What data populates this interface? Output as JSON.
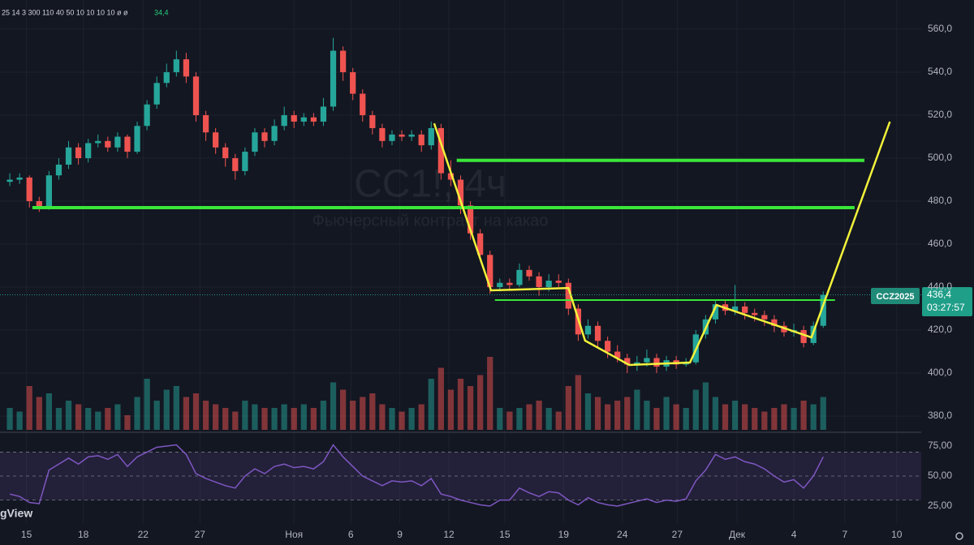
{
  "chart_data": {
    "type": "candlestick",
    "title": "CC1!, 4ч",
    "subtitle": "Фьючерсный контракт на какао",
    "brand": "gView",
    "indicator_text": "25 14 3 300 110 40 50 10 10 10 10 ø ø",
    "indicator_value": "34,4",
    "symbol_tag": "CCZ2025",
    "last_price_label": "436,4",
    "countdown": "03:27:57",
    "up_color": "#26a69a",
    "down_color": "#ef5350",
    "grid": true,
    "x": [
      0,
      1,
      2,
      3,
      4,
      5,
      6,
      7,
      8,
      9,
      10,
      11,
      12,
      13,
      14,
      15,
      16,
      17,
      18,
      19,
      20,
      21,
      22,
      23,
      24,
      25,
      26,
      27,
      28,
      29,
      30,
      31,
      32,
      33,
      34,
      35,
      36,
      37,
      38,
      39,
      40,
      41,
      42,
      43,
      44,
      45,
      46,
      47,
      48,
      49,
      50,
      51,
      52,
      53,
      54,
      55,
      56,
      57,
      58,
      59,
      60,
      61,
      62,
      63,
      64,
      65,
      66,
      67,
      68,
      69,
      70,
      71,
      72,
      73,
      74,
      75,
      76,
      77,
      78,
      79,
      80,
      81,
      82,
      83
    ],
    "open": [
      489,
      490,
      491,
      480,
      477,
      492,
      497,
      505,
      500,
      507,
      508,
      505,
      510,
      503,
      515,
      525,
      535,
      540,
      546,
      538,
      520,
      512,
      505,
      500,
      494,
      503,
      512,
      508,
      515,
      520,
      517,
      519,
      517,
      524,
      550,
      540,
      530,
      520,
      514,
      508,
      511,
      510,
      511,
      506,
      514,
      493,
      490,
      478,
      465,
      455,
      440,
      442,
      441,
      448,
      445,
      440,
      443,
      442,
      430,
      418,
      422,
      415,
      410,
      407,
      404,
      405,
      407,
      403,
      406,
      404,
      405,
      418,
      425,
      432,
      429,
      431,
      428,
      427,
      425,
      422,
      419,
      420,
      414,
      422
    ],
    "high": [
      493,
      493,
      492,
      482,
      494,
      500,
      508,
      507,
      509,
      511,
      510,
      512,
      511,
      517,
      527,
      538,
      544,
      550,
      549,
      540,
      522,
      514,
      507,
      502,
      505,
      514,
      514,
      518,
      524,
      522,
      521,
      521,
      528,
      556,
      552,
      542,
      532,
      522,
      516,
      513,
      513,
      513,
      513,
      517,
      516,
      499,
      492,
      480,
      467,
      457,
      444,
      444,
      451,
      450,
      447,
      446,
      446,
      444,
      432,
      425,
      424,
      417,
      413,
      409,
      408,
      411,
      409,
      408,
      408,
      407,
      420,
      427,
      434,
      434,
      441,
      433,
      430,
      429,
      427,
      424,
      423,
      422,
      424,
      438
    ],
    "low": [
      487,
      488,
      477,
      475,
      476,
      490,
      495,
      497,
      498,
      505,
      503,
      503,
      500,
      502,
      513,
      523,
      533,
      538,
      535,
      517,
      508,
      502,
      496,
      490,
      492,
      501,
      505,
      506,
      513,
      514,
      515,
      515,
      515,
      522,
      536,
      527,
      517,
      511,
      505,
      506,
      508,
      508,
      503,
      504,
      490,
      487,
      474,
      462,
      452,
      437,
      438,
      439,
      440,
      443,
      436,
      438,
      440,
      427,
      415,
      416,
      412,
      407,
      405,
      400,
      401,
      403,
      400,
      401,
      402,
      403,
      404,
      416,
      423,
      427,
      427,
      425,
      424,
      422,
      419,
      417,
      417,
      412,
      413,
      421
    ],
    "close": [
      490,
      491,
      480,
      477,
      492,
      497,
      505,
      500,
      507,
      508,
      505,
      510,
      503,
      515,
      525,
      535,
      540,
      546,
      538,
      520,
      512,
      505,
      500,
      494,
      503,
      512,
      508,
      515,
      520,
      517,
      519,
      517,
      524,
      550,
      540,
      530,
      520,
      514,
      508,
      511,
      510,
      511,
      506,
      514,
      493,
      490,
      478,
      465,
      455,
      440,
      442,
      441,
      448,
      445,
      440,
      443,
      442,
      430,
      418,
      422,
      415,
      410,
      407,
      404,
      405,
      407,
      403,
      406,
      404,
      405,
      418,
      425,
      432,
      429,
      431,
      428,
      427,
      425,
      422,
      419,
      420,
      414,
      422,
      436.4
    ],
    "volume": [
      30,
      25,
      60,
      45,
      50,
      30,
      40,
      35,
      30,
      25,
      30,
      35,
      20,
      45,
      70,
      40,
      55,
      60,
      45,
      50,
      40,
      35,
      30,
      25,
      40,
      35,
      30,
      30,
      35,
      30,
      35,
      30,
      40,
      65,
      55,
      40,
      45,
      50,
      35,
      30,
      25,
      30,
      35,
      70,
      85,
      55,
      70,
      60,
      75,
      100,
      30,
      25,
      30,
      35,
      40,
      30,
      25,
      60,
      75,
      50,
      45,
      35,
      40,
      45,
      55,
      40,
      30,
      45,
      35,
      30,
      55,
      65,
      45,
      35,
      40,
      35,
      30,
      25,
      30,
      35,
      30,
      40,
      35,
      45
    ],
    "rsi": [
      35,
      33,
      28,
      27,
      55,
      60,
      65,
      60,
      66,
      67,
      64,
      68,
      58,
      66,
      70,
      74,
      75,
      76,
      68,
      52,
      48,
      45,
      42,
      40,
      50,
      56,
      52,
      58,
      60,
      57,
      58,
      56,
      62,
      76,
      66,
      58,
      50,
      46,
      42,
      46,
      45,
      46,
      42,
      48,
      35,
      33,
      30,
      28,
      26,
      25,
      30,
      30,
      40,
      36,
      33,
      37,
      36,
      30,
      26,
      32,
      28,
      26,
      25,
      27,
      29,
      31,
      28,
      30,
      29,
      31,
      46,
      55,
      68,
      64,
      66,
      62,
      60,
      56,
      50,
      45,
      47,
      40,
      50,
      66
    ],
    "rsi_color": "#7e57c2",
    "rsi_levels": [
      70,
      50,
      30
    ],
    "xlim": [
      -1,
      93
    ],
    "xticks": [
      {
        "value": 1.7,
        "label": "15"
      },
      {
        "value": 7.5,
        "label": "18"
      },
      {
        "value": 13.6,
        "label": "22"
      },
      {
        "value": 19.4,
        "label": "27"
      },
      {
        "value": 29.0,
        "label": "Ноя"
      },
      {
        "value": 34.8,
        "label": "6"
      },
      {
        "value": 39.8,
        "label": "9"
      },
      {
        "value": 44.8,
        "label": "12"
      },
      {
        "value": 50.5,
        "label": "15"
      },
      {
        "value": 56.5,
        "label": "19"
      },
      {
        "value": 62.5,
        "label": "24"
      },
      {
        "value": 68.1,
        "label": "27"
      },
      {
        "value": 74.2,
        "label": "Дек"
      },
      {
        "value": 80.0,
        "label": "4"
      },
      {
        "value": 85.2,
        "label": "7"
      },
      {
        "value": 90.5,
        "label": "10"
      }
    ],
    "ylim": [
      373.6,
      573.6
    ],
    "yticks": [
      {
        "value": 560,
        "label": "560,0"
      },
      {
        "value": 540,
        "label": "540,0"
      },
      {
        "value": 520,
        "label": "520,0"
      },
      {
        "value": 500,
        "label": "500,0"
      },
      {
        "value": 480,
        "label": "480,0"
      },
      {
        "value": 460,
        "label": "460,0"
      },
      {
        "value": 440,
        "label": "440,0"
      },
      {
        "value": 420,
        "label": "420,0"
      },
      {
        "value": 400,
        "label": "400,0"
      },
      {
        "value": 380,
        "label": "380,0"
      }
    ],
    "y2lim": [
      10.8,
      83.8
    ],
    "y2ticks": [
      {
        "value": 75,
        "label": "75,00"
      },
      {
        "value": 50,
        "label": "50,00"
      },
      {
        "value": 25,
        "label": "25,00"
      }
    ],
    "hline_color": "#39e639",
    "hlines": [
      {
        "y": 499,
        "x": [
          45.6,
          87.2
        ]
      },
      {
        "y": 477,
        "x": [
          2.3,
          86.2
        ]
      },
      {
        "y": 434,
        "x": [
          49.5,
          84.2
        ]
      }
    ],
    "trendline": {
      "color": "#f2f23a",
      "x": [
        43.3,
        49.1,
        57.0,
        58.7,
        63.2,
        69.4,
        72.1,
        81.8,
        89.8
      ],
      "y": [
        516.2,
        438.5,
        439.6,
        415.1,
        403.8,
        404.9,
        431.7,
        416.6,
        517.0
      ]
    }
  }
}
